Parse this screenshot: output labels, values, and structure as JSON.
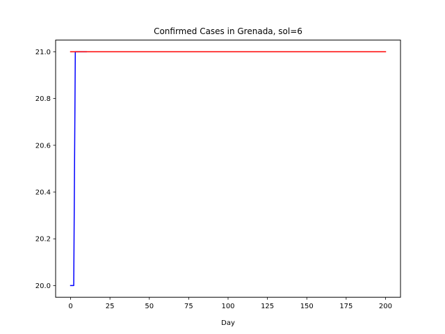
{
  "chart_data": {
    "type": "line",
    "title": "Confirmed Cases in Grenada, sol=6",
    "xlabel": "Day",
    "ylabel": "",
    "xlim": [
      -9.5,
      209.5
    ],
    "ylim": [
      19.95,
      21.05
    ],
    "xticks": [
      0,
      25,
      50,
      75,
      100,
      125,
      150,
      175,
      200
    ],
    "yticks": [
      20.0,
      20.2,
      20.4,
      20.6,
      20.8,
      21.0
    ],
    "ytick_labels": [
      "20.0",
      "20.2",
      "20.4",
      "20.6",
      "20.8",
      "21.0"
    ],
    "grid": false,
    "series": [
      {
        "color": "#0000ff",
        "x": [
          0,
          1,
          2,
          3,
          4,
          5,
          6,
          7,
          8,
          9,
          10
        ],
        "y": [
          20,
          20,
          20,
          21,
          21,
          21,
          21,
          21,
          21,
          21,
          21
        ]
      },
      {
        "color": "#ff0000",
        "x": [
          0,
          200
        ],
        "y": [
          21,
          21
        ]
      }
    ]
  }
}
